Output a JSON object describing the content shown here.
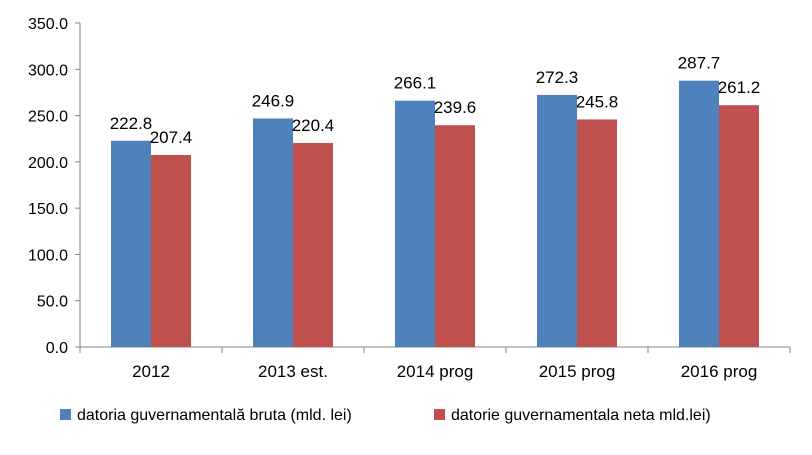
{
  "chart_data": {
    "type": "bar",
    "title": "",
    "xlabel": "",
    "ylabel": "",
    "ylim": [
      0,
      350
    ],
    "yticks": [
      "0.0",
      "50.0",
      "100.0",
      "150.0",
      "200.0",
      "250.0",
      "300.0",
      "350.0"
    ],
    "grid": false,
    "legend_position": "bottom",
    "categories": [
      "2012",
      "2013 est.",
      "2014 prog",
      "2015 prog",
      "2016 prog"
    ],
    "series": [
      {
        "name": "datoria guvernamentală bruta (mld. lei)",
        "color": "#4F81BD",
        "values": [
          222.8,
          246.9,
          266.1,
          272.3,
          287.7
        ],
        "labels": [
          "222.8",
          "246.9",
          "266.1",
          "272.3",
          "287.7"
        ]
      },
      {
        "name": "datorie guvernamentala neta mld.lei)",
        "color": "#C0504D",
        "values": [
          207.4,
          220.4,
          239.6,
          245.8,
          261.2
        ],
        "labels": [
          "207.4",
          "220.4",
          "239.6",
          "245.8",
          "261.2"
        ]
      }
    ]
  }
}
